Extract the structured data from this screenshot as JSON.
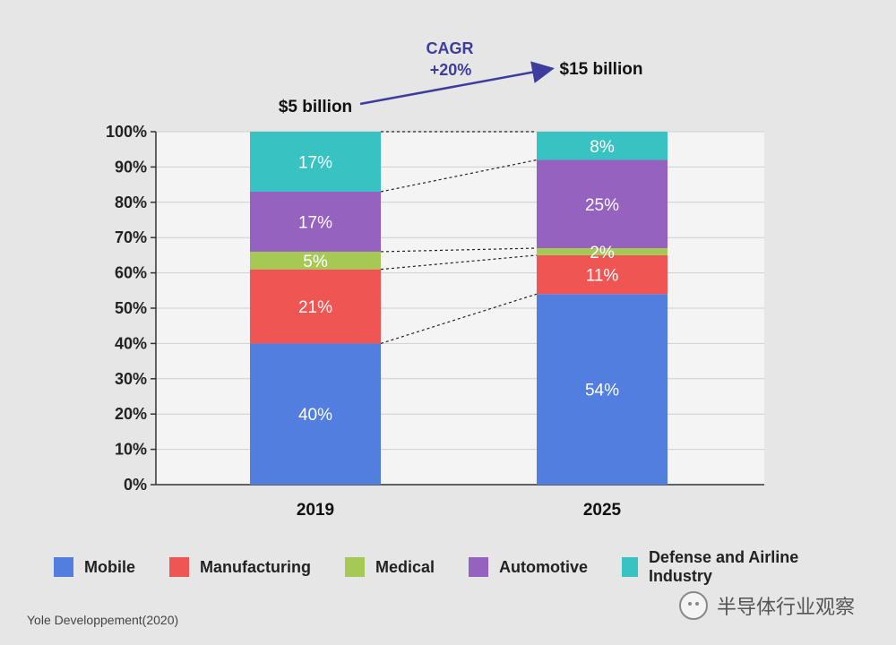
{
  "chart_data": {
    "type": "bar",
    "stacked": true,
    "categories": [
      "2019",
      "2025"
    ],
    "series": [
      {
        "name": "Mobile",
        "values": [
          40,
          54
        ],
        "labels": [
          "40%",
          "54%"
        ],
        "color": "#527ee0"
      },
      {
        "name": "Manufacturing",
        "values": [
          21,
          11
        ],
        "labels": [
          "21%",
          "11%"
        ],
        "color": "#ef5552"
      },
      {
        "name": "Medical",
        "values": [
          5,
          2
        ],
        "labels": [
          "5%",
          "2%"
        ],
        "color": "#a6c956"
      },
      {
        "name": "Automotive",
        "values": [
          17,
          25
        ],
        "labels": [
          "17%",
          "25%"
        ],
        "color": "#9562c0"
      },
      {
        "name": "Defense and Airline Industry",
        "values": [
          17,
          8
        ],
        "labels": [
          "17%",
          "8%"
        ],
        "color": "#38c3c2"
      }
    ],
    "ylim": [
      0,
      100
    ],
    "yticks": [
      "0%",
      "10%",
      "20%",
      "30%",
      "40%",
      "50%",
      "60%",
      "70%",
      "80%",
      "90%",
      "100%"
    ],
    "grid": true,
    "legend_position": "bottom",
    "annotations": {
      "start_total": "$5 billion",
      "end_total": "$15 billion",
      "cagr_line1": "CAGR",
      "cagr_line2": "+20%"
    }
  },
  "source": "Yole Developpement(2020)",
  "watermark": "半导体行业观察",
  "watermark_icon": "wechat-icon"
}
